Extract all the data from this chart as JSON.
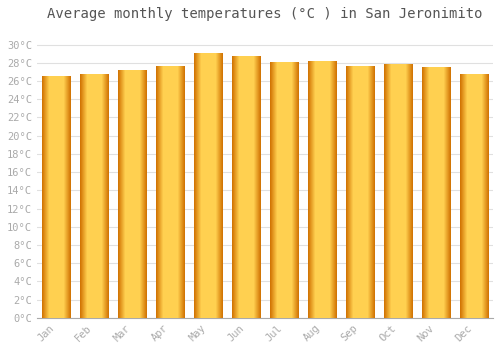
{
  "title": "Average monthly temperatures (°C ) in San Jeronimito",
  "months": [
    "Jan",
    "Feb",
    "Mar",
    "Apr",
    "May",
    "Jun",
    "Jul",
    "Aug",
    "Sep",
    "Oct",
    "Nov",
    "Dec"
  ],
  "temperatures": [
    26.5,
    26.7,
    27.2,
    27.6,
    29.0,
    28.7,
    28.0,
    28.1,
    27.6,
    27.8,
    27.5,
    26.7
  ],
  "bar_color_main": "#FFB800",
  "bar_color_left": "#E07800",
  "bar_color_right": "#FFC830",
  "ylim": [
    0,
    32
  ],
  "yticks": [
    0,
    2,
    4,
    6,
    8,
    10,
    12,
    14,
    16,
    18,
    20,
    22,
    24,
    26,
    28,
    30
  ],
  "ytick_labels": [
    "0°C",
    "2°C",
    "4°C",
    "6°C",
    "8°C",
    "10°C",
    "12°C",
    "14°C",
    "16°C",
    "18°C",
    "20°C",
    "22°C",
    "24°C",
    "26°C",
    "28°C",
    "30°C"
  ],
  "background_color": "#ffffff",
  "grid_color": "#e0e0e0",
  "title_fontsize": 10,
  "tick_fontsize": 7.5,
  "font_family": "monospace",
  "tick_color": "#aaaaaa"
}
